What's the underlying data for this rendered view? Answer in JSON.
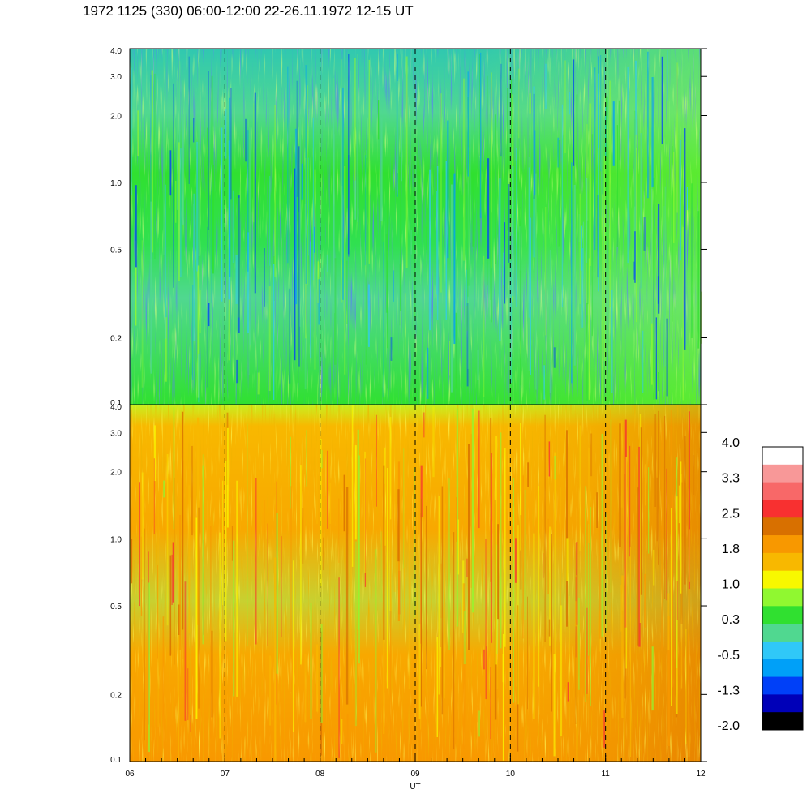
{
  "title": "1972 1125 (330) 06:00-12:00 22-26.11.1972  12-15 UT",
  "chart_data": [
    {
      "type": "heatmap",
      "panel": "top",
      "x_range": [
        "06",
        "12"
      ],
      "y_scale": "log",
      "y_range": [
        0.1,
        4.0
      ],
      "y_ticks": [
        "0.1",
        "0.2",
        "0.5",
        "1.0",
        "2.0",
        "3.0",
        "4.0"
      ],
      "x_ticks": [
        "06",
        "07",
        "08",
        "09",
        "10",
        "11",
        "12"
      ],
      "vertical_dashed_lines_at": [
        "07",
        "08",
        "09",
        "10",
        "11"
      ],
      "dominant_colors": [
        "#30e030",
        "#50d890",
        "#30c8f8",
        "#00a0f8",
        "#90f830",
        "#0040f8"
      ],
      "value_range_approx": [
        -1.3,
        1.0
      ]
    },
    {
      "type": "heatmap",
      "panel": "bottom",
      "x_range": [
        "06",
        "12"
      ],
      "y_scale": "log",
      "y_range": [
        0.1,
        4.0
      ],
      "y_ticks": [
        "0.1",
        "0.2",
        "0.5",
        "1.0",
        "2.0",
        "3.0",
        "4.0"
      ],
      "x_ticks": [
        "06",
        "07",
        "08",
        "09",
        "10",
        "11",
        "12"
      ],
      "xlabel": "UT",
      "vertical_dashed_lines_at": [
        "07",
        "08",
        "09",
        "10",
        "11"
      ],
      "dominant_colors": [
        "#f8b800",
        "#f89800",
        "#f8f800",
        "#90f830",
        "#d87000",
        "#f83030"
      ],
      "value_range_approx": [
        0.3,
        2.5
      ]
    }
  ],
  "colorbar": {
    "labels": [
      "4.0",
      "3.3",
      "2.5",
      "1.8",
      "1.0",
      "0.3",
      "-0.5",
      "-1.3",
      "-2.0"
    ],
    "colors_top_to_bottom": [
      "#ffffff",
      "#f89898",
      "#f86868",
      "#f83030",
      "#d87000",
      "#f89800",
      "#f8b800",
      "#f8f800",
      "#90f830",
      "#30e030",
      "#50d890",
      "#30c8f8",
      "#00a0f8",
      "#0040f8",
      "#0000b8",
      "#000000"
    ]
  }
}
